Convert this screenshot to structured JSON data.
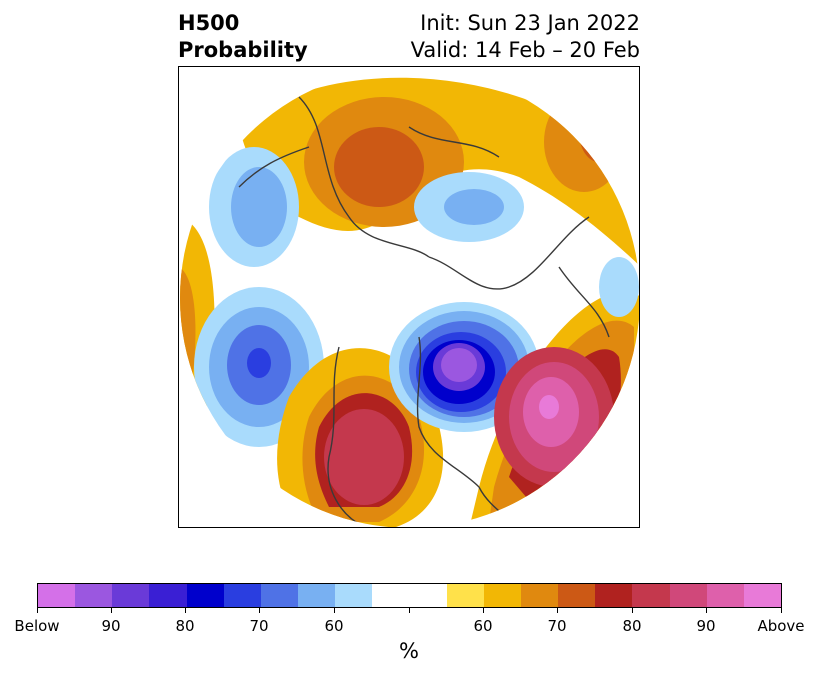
{
  "title": {
    "left_line1": "H500",
    "left_line2": "Probability",
    "right_line1": "Init: Sun 23 Jan 2022",
    "right_line2": "Valid: 14 Feb – 20 Feb"
  },
  "colorbar": {
    "unit": "%",
    "tick_labels": [
      "Below",
      "90",
      "80",
      "70",
      "60",
      "60",
      "70",
      "80",
      "90",
      "Above"
    ],
    "colors": [
      "#d470e8",
      "#9b57e0",
      "#6a3ad8",
      "#3a1fd4",
      "#0000cc",
      "#2a3ee0",
      "#4f72e6",
      "#78b0f2",
      "#a9dbfc",
      "#ffffff",
      "#ffe14a",
      "#f2b705",
      "#e0890f",
      "#cc5915",
      "#b0221f",
      "#c4384d",
      "#d0487a",
      "#de60ab",
      "#e87ad8"
    ]
  },
  "map": {
    "description_colors": {
      "above_strong": "#de60ab",
      "above_mid": "#c4384d",
      "above_weak": "#f2b705",
      "below_strong": "#9b57e0",
      "below_mid": "#2a3ee0",
      "below_weak": "#a9dbfc"
    }
  }
}
